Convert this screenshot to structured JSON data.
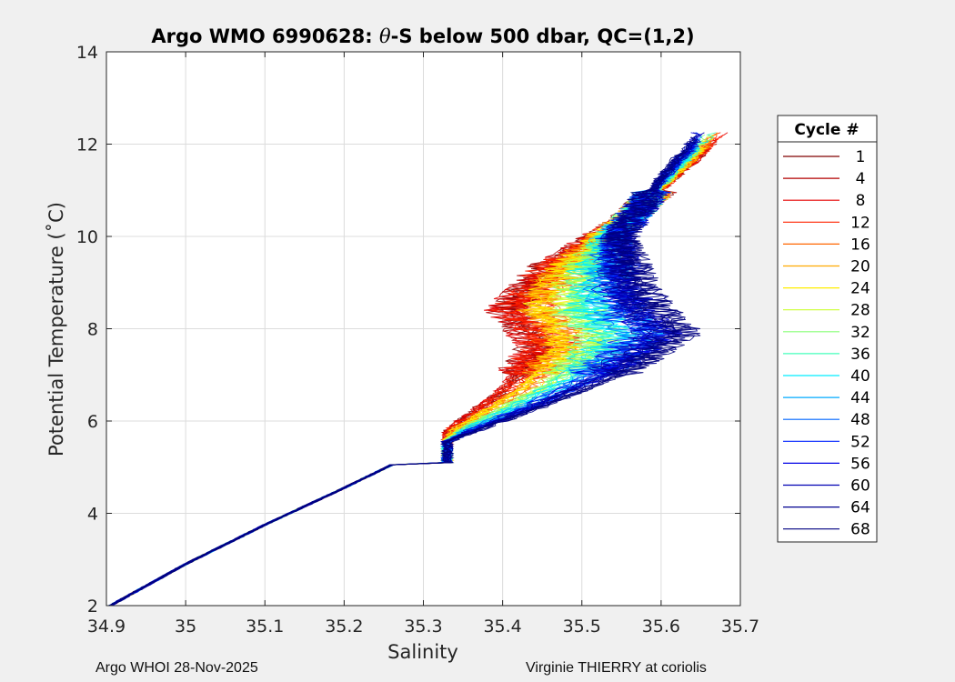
{
  "chart_data": {
    "type": "line",
    "title": "Argo WMO 6990628: θ-S below 500 dbar,  QC=(1,2)",
    "title_prefix": "Argo WMO 6990628: ",
    "title_theta": "θ",
    "title_suffix": "-S below 500 dbar,  QC=(1,2)",
    "xlabel": "Salinity",
    "ylabel": "Potential Temperature (˚C)",
    "xlim": [
      34.9,
      35.7
    ],
    "ylim": [
      2,
      14
    ],
    "xticks": [
      "34.9",
      "35",
      "35.1",
      "35.2",
      "35.3",
      "35.4",
      "35.5",
      "35.6",
      "35.7"
    ],
    "xtick_values": [
      34.9,
      35.0,
      35.1,
      35.2,
      35.3,
      35.4,
      35.5,
      35.6,
      35.7
    ],
    "yticks": [
      "2",
      "4",
      "6",
      "8",
      "10",
      "12",
      "14"
    ],
    "ytick_values": [
      2,
      4,
      6,
      8,
      10,
      12,
      14
    ],
    "grid": true,
    "legend_title": "Cycle #",
    "legend_position": "outside-right",
    "colormap": "jet",
    "series": [
      {
        "name": "1",
        "color": "#800000"
      },
      {
        "name": "4",
        "color": "#b30000"
      },
      {
        "name": "8",
        "color": "#e60000"
      },
      {
        "name": "12",
        "color": "#ff2200"
      },
      {
        "name": "16",
        "color": "#ff6600"
      },
      {
        "name": "20",
        "color": "#ffaa00"
      },
      {
        "name": "24",
        "color": "#ffee00"
      },
      {
        "name": "28",
        "color": "#ccff33"
      },
      {
        "name": "32",
        "color": "#88ff77"
      },
      {
        "name": "36",
        "color": "#44ffbb"
      },
      {
        "name": "40",
        "color": "#00eeff"
      },
      {
        "name": "44",
        "color": "#00aaff"
      },
      {
        "name": "48",
        "color": "#0066ff"
      },
      {
        "name": "52",
        "color": "#0022ff"
      },
      {
        "name": "56",
        "color": "#0000e6"
      },
      {
        "name": "60",
        "color": "#0000b3"
      },
      {
        "name": "64",
        "color": "#00008f"
      },
      {
        "name": "68",
        "color": "#000080"
      }
    ],
    "profile_shape": {
      "shared_lower": [
        [
          34.905,
          2.0
        ],
        [
          35.0,
          2.9
        ],
        [
          35.1,
          3.75
        ],
        [
          35.2,
          4.55
        ],
        [
          35.26,
          5.05
        ]
      ],
      "warm_branch": [
        [
          35.33,
          5.8
        ],
        [
          35.4,
          6.7
        ],
        [
          35.44,
          7.6
        ],
        [
          35.4,
          8.4
        ],
        [
          35.45,
          9.3
        ],
        [
          35.55,
          10.3
        ],
        [
          35.64,
          11.6
        ],
        [
          35.685,
          12.35
        ]
      ],
      "cool_branch": [
        [
          35.33,
          5.55
        ],
        [
          35.45,
          6.3
        ],
        [
          35.55,
          7.0
        ],
        [
          35.63,
          7.9
        ],
        [
          35.58,
          8.8
        ],
        [
          35.55,
          10.0
        ],
        [
          35.6,
          11.3
        ],
        [
          35.64,
          12.1
        ]
      ]
    }
  },
  "footer": {
    "left": "Argo WHOI 28-Nov-2025",
    "right": "Virginie THIERRY at coriolis"
  }
}
